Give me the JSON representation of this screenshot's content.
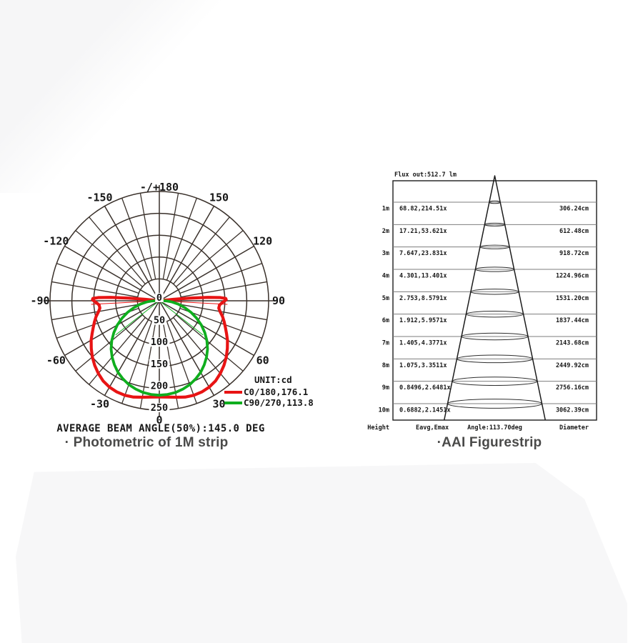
{
  "page": {
    "left_caption": "· Photometric of 1M strip",
    "right_caption": "·AAI Figurestrip"
  },
  "chart_data": [
    {
      "type": "polar",
      "name": "photometric-of-1m-strip",
      "unit_label": "UNIT:cd",
      "average_beam_angle_text": "AVERAGE BEAM ANGLE(50%):145.0 DEG",
      "r_max": 250,
      "radial_ticks": [
        0,
        50,
        100,
        150,
        200,
        250
      ],
      "angle_labels": [
        {
          "text": "-/+180",
          "angle": 180
        },
        {
          "text": "-150",
          "angle": -150
        },
        {
          "text": "150",
          "angle": 150
        },
        {
          "text": "-120",
          "angle": -120
        },
        {
          "text": "120",
          "angle": 120
        },
        {
          "text": "-90",
          "angle": -90
        },
        {
          "text": "90",
          "angle": 90
        },
        {
          "text": "-60",
          "angle": -60
        },
        {
          "text": "60",
          "angle": 60
        },
        {
          "text": "-30",
          "angle": -30
        },
        {
          "text": "30",
          "angle": 30
        },
        {
          "text": "0",
          "angle": 0
        }
      ],
      "grid_color": "#3a312b",
      "series": [
        {
          "name": "C0/180",
          "legend_label": "C0/180,176.1",
          "beam_angle_deg": 176.1,
          "color": "#e81414",
          "stroke_width": 4.2,
          "beam_ray": {
            "angle": 87,
            "cd": 156
          },
          "points": [
            [
              0,
              220
            ],
            [
              5,
              221
            ],
            [
              10,
              224
            ],
            [
              15,
              228
            ],
            [
              20,
              230
            ],
            [
              25,
              230
            ],
            [
              30,
              228
            ],
            [
              35,
              224
            ],
            [
              40,
              217
            ],
            [
              45,
              209
            ],
            [
              50,
              200
            ],
            [
              55,
              190
            ],
            [
              60,
              180
            ],
            [
              64,
              171
            ],
            [
              68,
              163
            ],
            [
              72,
              156
            ],
            [
              76,
              149
            ],
            [
              80,
              141
            ],
            [
              83,
              137
            ],
            [
              86,
              138
            ],
            [
              88,
              143
            ],
            [
              90,
              150
            ],
            [
              91,
              153
            ],
            [
              92,
              152
            ],
            [
              93,
              140
            ],
            [
              94,
              112
            ],
            [
              95,
              70
            ],
            [
              96,
              32
            ],
            [
              97,
              0
            ]
          ]
        },
        {
          "name": "C90/270",
          "legend_label": "C90/270,113.8",
          "beam_angle_deg": 113.8,
          "color": "#0fae1e",
          "stroke_width": 3.8,
          "beam_ray": {
            "angle": 52,
            "cd": 127
          },
          "points": [
            [
              0,
              216
            ],
            [
              5,
              215
            ],
            [
              10,
              213
            ],
            [
              15,
              209
            ],
            [
              20,
              204
            ],
            [
              25,
              197
            ],
            [
              30,
              189
            ],
            [
              35,
              179
            ],
            [
              40,
              168
            ],
            [
              45,
              156
            ],
            [
              50,
              142
            ],
            [
              55,
              127
            ],
            [
              60,
              111
            ],
            [
              65,
              94
            ],
            [
              70,
              77
            ],
            [
              75,
              60
            ],
            [
              80,
              44
            ],
            [
              85,
              28
            ],
            [
              88,
              18
            ],
            [
              91,
              8
            ],
            [
              94,
              0
            ]
          ]
        }
      ]
    },
    {
      "type": "cone-table",
      "name": "aai-figurestrip",
      "flux_label": "Flux out:512.7 lm",
      "footer": {
        "height": "Height",
        "eavg": "Eavg,Emax",
        "angle": "Angle:113.70deg",
        "diameter": "Diameter"
      },
      "rows": [
        {
          "height": "1m",
          "eavg_emax": "68.82,214.51x",
          "diameter": "306.24cm"
        },
        {
          "height": "2m",
          "eavg_emax": "17.21,53.621x",
          "diameter": "612.48cm"
        },
        {
          "height": "3m",
          "eavg_emax": "7.647,23.831x",
          "diameter": "918.72cm"
        },
        {
          "height": "4m",
          "eavg_emax": "4.301,13.401x",
          "diameter": "1224.96cm"
        },
        {
          "height": "5m",
          "eavg_emax": "2.753,8.5791x",
          "diameter": "1531.20cm"
        },
        {
          "height": "6m",
          "eavg_emax": "1.912,5.9571x",
          "diameter": "1837.44cm"
        },
        {
          "height": "7m",
          "eavg_emax": "1.405,4.3771x",
          "diameter": "2143.68cm"
        },
        {
          "height": "8m",
          "eavg_emax": "1.075,3.3511x",
          "diameter": "2449.92cm"
        },
        {
          "height": "9m",
          "eavg_emax": "0.8496,2.6481x",
          "diameter": "2756.16cm"
        },
        {
          "height": "10m",
          "eavg_emax": "0.6882,2.1451x",
          "diameter": "3062.39cm"
        }
      ]
    }
  ]
}
